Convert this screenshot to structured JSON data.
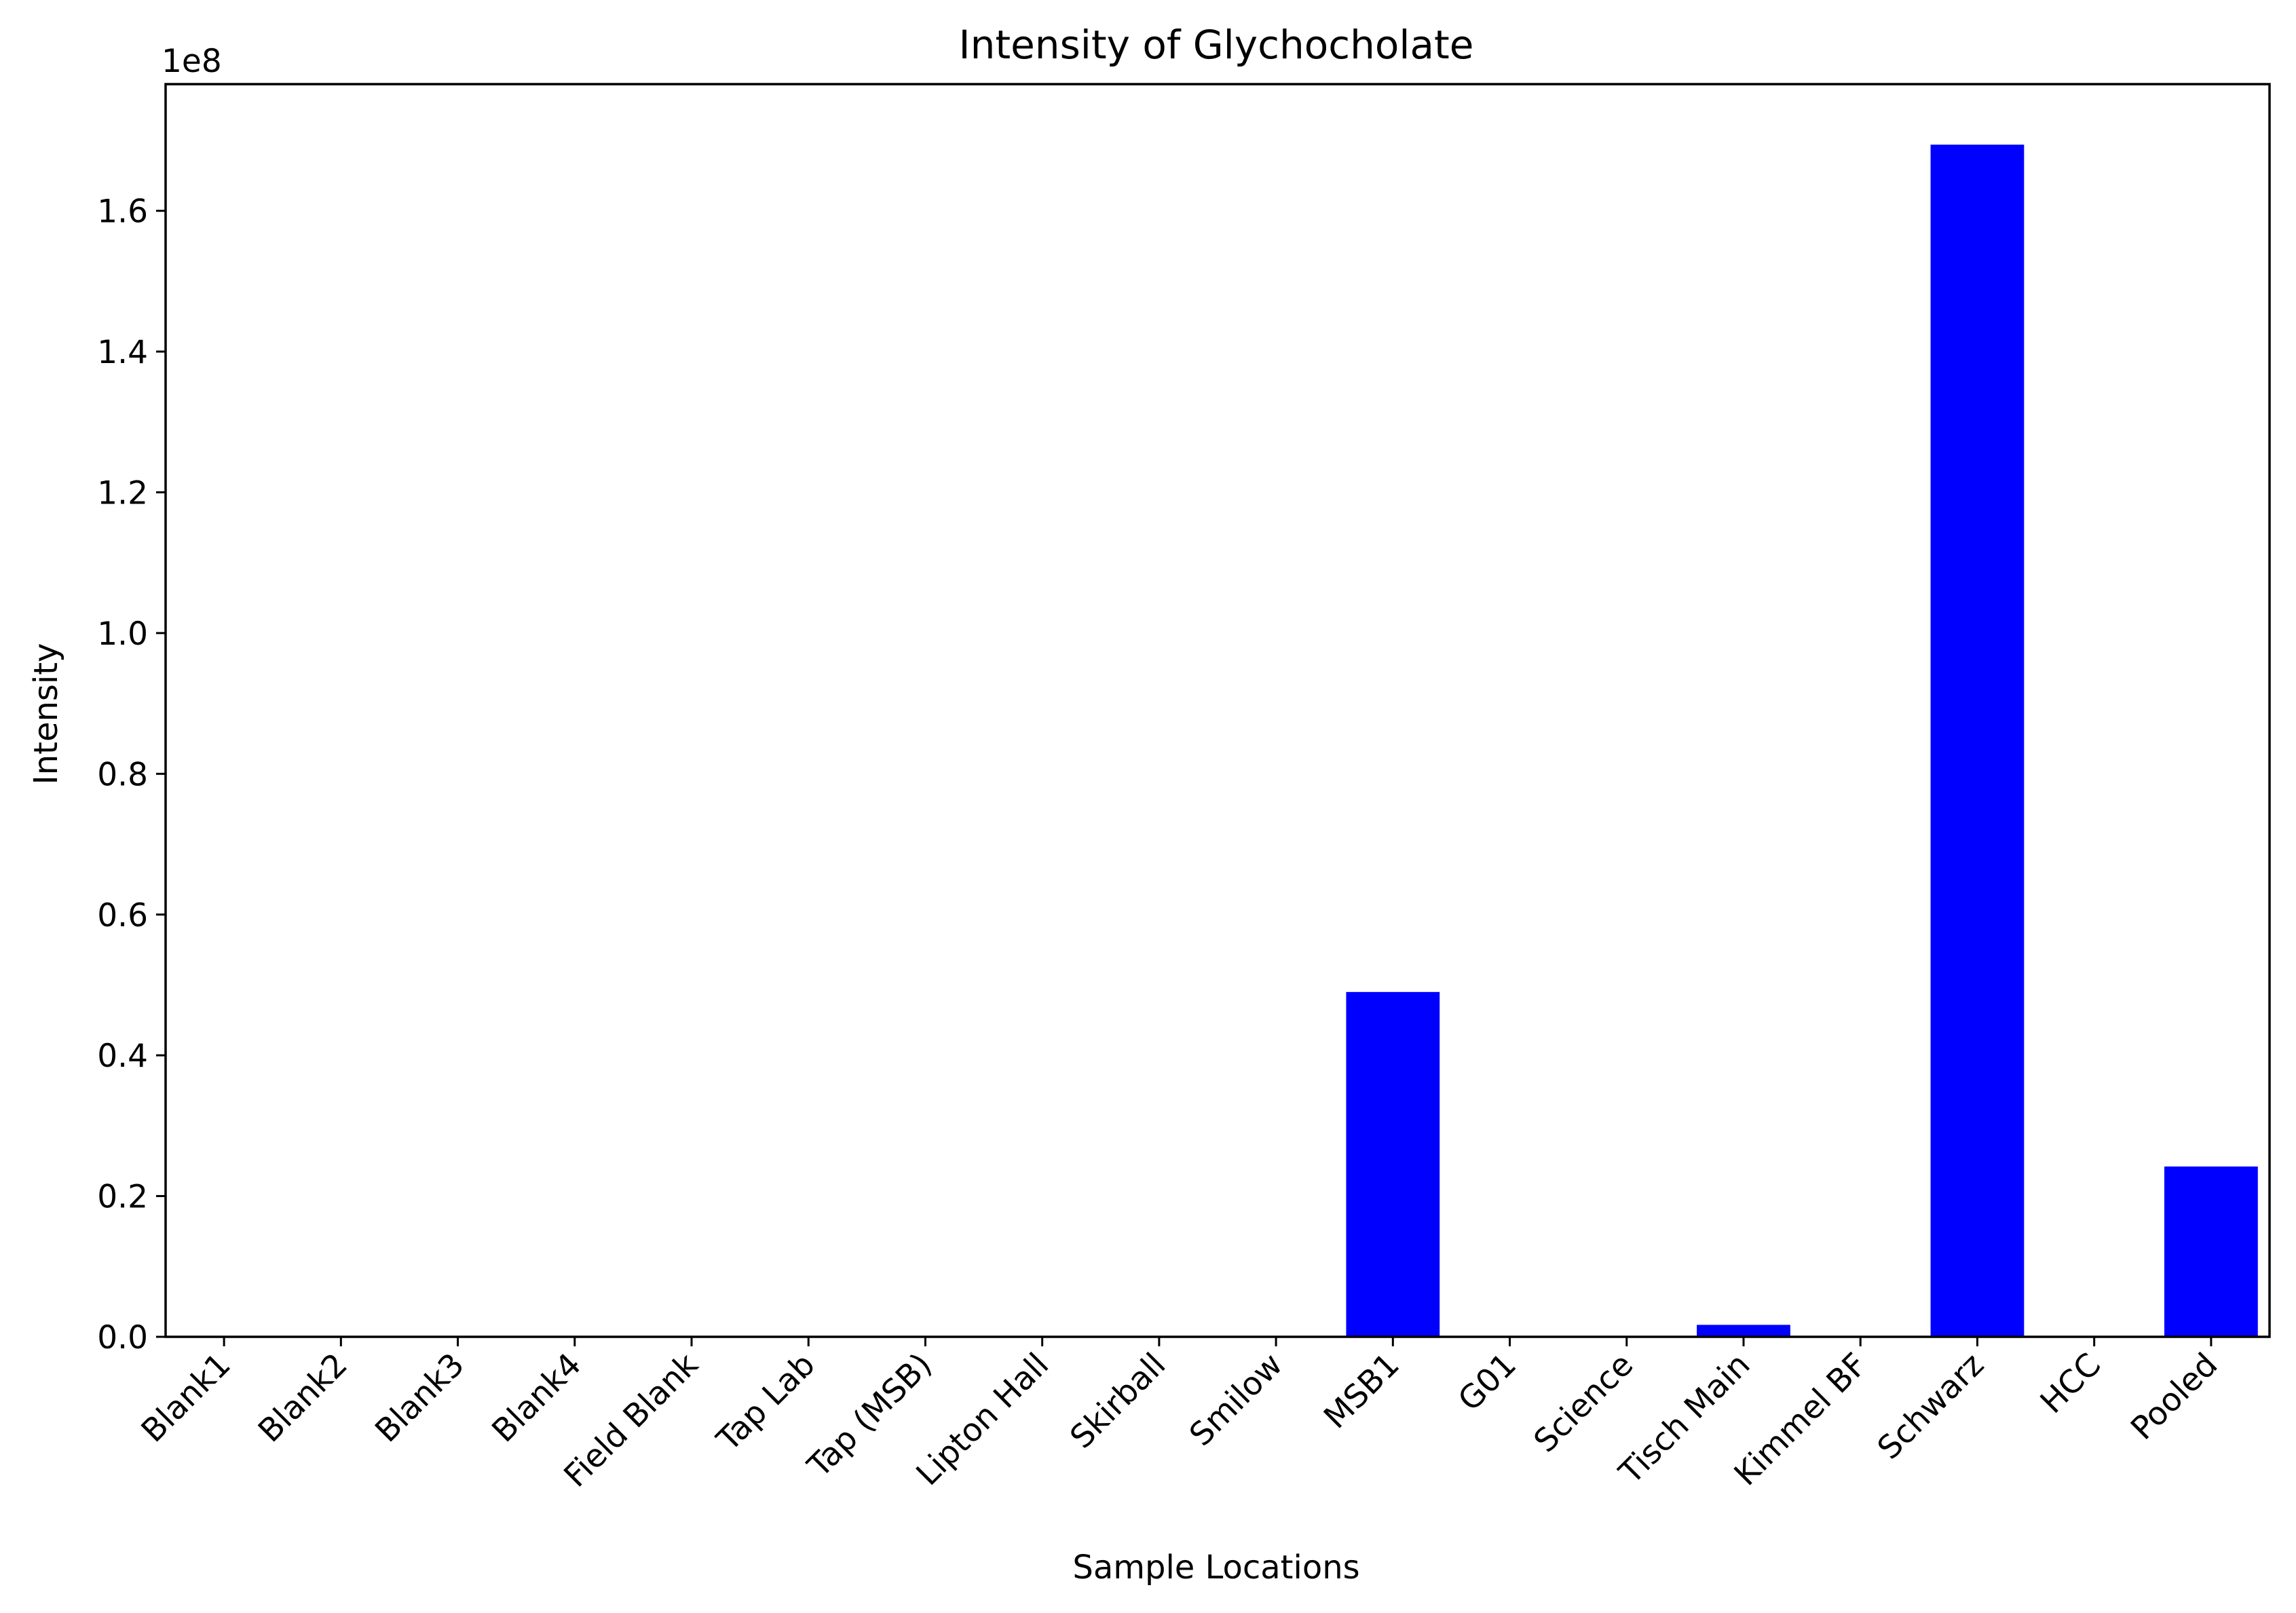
{
  "chart_data": {
    "type": "bar",
    "title": "Intensity of Glychocholate",
    "xlabel": "Sample Locations",
    "ylabel": "Intensity",
    "offset_label": "1e8",
    "categories": [
      "Blank1",
      "Blank2",
      "Blank3",
      "Blank4",
      "Field Blank",
      "Tap Lab",
      "Tap (MSB)",
      "Lipton Hall",
      "Skirball",
      "Smilow",
      "MSB1",
      "G01",
      "Science",
      "Tisch Main",
      "Kimmel BF",
      "Schwarz",
      "HCC",
      "Pooled"
    ],
    "values": [
      0,
      0,
      0,
      0,
      0,
      0,
      0,
      0,
      0,
      0,
      49000000,
      0,
      0,
      1700000,
      0,
      169400000,
      0,
      24200000
    ],
    "ylim": [
      0,
      178000000
    ],
    "yticks": [
      0,
      20000000,
      40000000,
      60000000,
      80000000,
      100000000,
      120000000,
      140000000,
      160000000
    ],
    "ytick_labels": [
      "0.0",
      "0.2",
      "0.4",
      "0.6",
      "0.8",
      "1.0",
      "1.2",
      "1.4",
      "1.6"
    ],
    "bar_color": "#0000ff",
    "grid": false,
    "legend": false
  }
}
